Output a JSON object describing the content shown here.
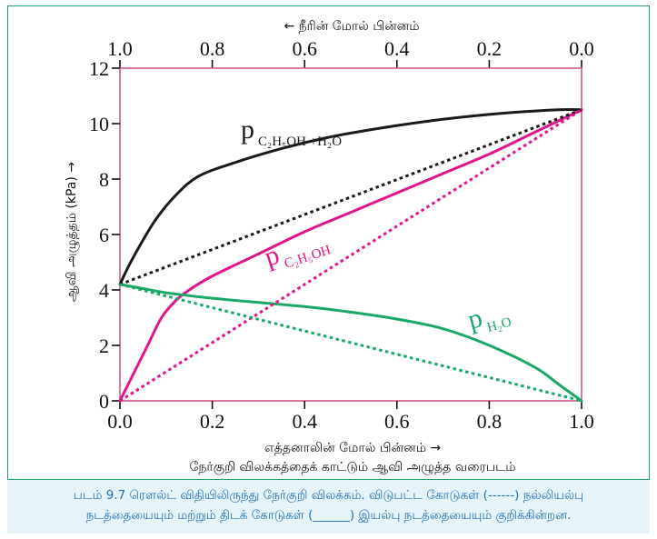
{
  "chart_data": {
    "type": "line",
    "top_axis_label": "← நீரின் மோல் பின்னம்",
    "top_ticks": [
      "1.0",
      "0.8",
      "0.6",
      "0.4",
      "0.2",
      "0.0"
    ],
    "xlabel": "எத்தனாலின் மோல் பின்னம் →",
    "x_ticks": [
      "0.0",
      "0.2",
      "0.4",
      "0.6",
      "0.8",
      "1.0"
    ],
    "ylabel": "ஆவி அழுத்தம் (kPa) →",
    "y_ticks": [
      "0",
      "2",
      "4",
      "6",
      "8",
      "10",
      "12"
    ],
    "title": "நேர்குறி விலக்கத்தைக் காட்டும் ஆவி அழுத்த வரைபடம்",
    "xlim": [
      0,
      1
    ],
    "ylim": [
      0,
      12
    ],
    "series": [
      {
        "name": "p_total",
        "label_main": "p",
        "label_sub": "C₂H₅OH +H₂O",
        "color": "#1a1a1a",
        "style": "solid",
        "x": [
          0,
          0.02,
          0.05,
          0.08,
          0.12,
          0.17,
          0.25,
          0.35,
          0.45,
          0.55,
          0.65,
          0.75,
          0.85,
          0.95,
          1.0
        ],
        "y": [
          4.2,
          4.9,
          5.8,
          6.6,
          7.4,
          8.1,
          8.6,
          9.1,
          9.5,
          9.8,
          10.05,
          10.25,
          10.4,
          10.5,
          10.5
        ]
      },
      {
        "name": "p_ethanol",
        "label_main": "p",
        "label_sub": "C₂H₅OH",
        "color": "#e0158c",
        "style": "solid",
        "x": [
          0,
          0.03,
          0.06,
          0.09,
          0.12,
          0.15,
          0.2,
          0.3,
          0.4,
          0.5,
          0.6,
          0.7,
          0.8,
          0.9,
          1.0
        ],
        "y": [
          0,
          1.0,
          2.0,
          3.0,
          3.6,
          4.0,
          4.5,
          5.3,
          6.1,
          6.8,
          7.5,
          8.2,
          8.9,
          9.7,
          10.5
        ]
      },
      {
        "name": "p_water",
        "label_main": "p",
        "label_sub": "H₂O",
        "color": "#1aa866",
        "style": "solid",
        "x": [
          0,
          0.05,
          0.1,
          0.2,
          0.3,
          0.4,
          0.5,
          0.6,
          0.7,
          0.8,
          0.9,
          0.95,
          1.0
        ],
        "y": [
          4.2,
          4.05,
          3.9,
          3.7,
          3.55,
          3.4,
          3.2,
          2.95,
          2.6,
          2.0,
          1.2,
          0.6,
          0
        ]
      },
      {
        "name": "ideal_total",
        "color": "#1a1a1a",
        "style": "dotted",
        "x": [
          0,
          1
        ],
        "y": [
          4.2,
          10.5
        ]
      },
      {
        "name": "ideal_ethanol",
        "color": "#e0158c",
        "style": "dotted",
        "x": [
          0,
          1
        ],
        "y": [
          0,
          10.5
        ]
      },
      {
        "name": "ideal_water",
        "color": "#1aa866",
        "style": "dotted",
        "x": [
          0,
          1
        ],
        "y": [
          4.2,
          0
        ]
      }
    ]
  },
  "caption": {
    "line1": "படம் 9.7 ரௌல்ட் விதியிலிருந்து நேர்குறி விலக்கம். விடுபட்ட கோடுகள் (------) நல்லியல்பு",
    "line2": "நடத்தையையும் மற்றும் திடக் கோடுகள் (______) இயல்பு நடத்தையையும் குறிக்கின்றன."
  },
  "colors": {
    "frame": "#1f9d63",
    "plot_border": "#d4588a",
    "caption_bg": "#e6f3f8",
    "caption_text": "#1f6fb5"
  }
}
